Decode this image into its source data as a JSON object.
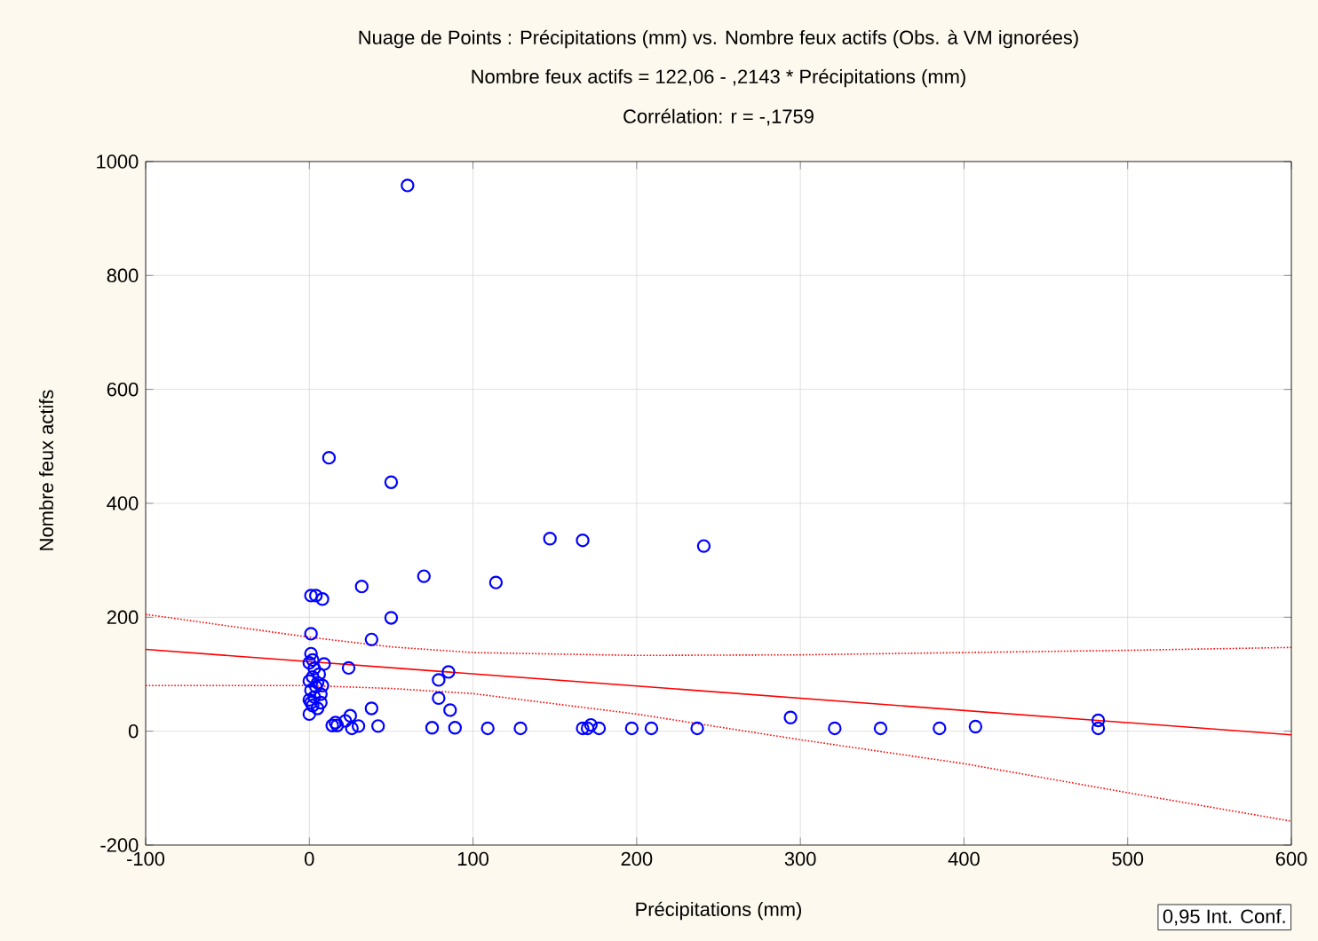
{
  "chart_data": {
    "type": "scatter",
    "title": "Nuage de Points : Précipitations  (mm) vs. Nombre feux actifs (Obs. à VM ignorées)",
    "subtitle": "Nombre feux actifs = 122,06 - ,2143  * Précipitations  (mm)",
    "annotations": [
      "Corrélation: r = -,1759",
      "0,95 Int. Conf."
    ],
    "xlabel": "Précipitations  (mm)",
    "ylabel": "Nombre feux actifs",
    "xlim": [
      -100,
      600
    ],
    "ylim": [
      -200,
      1000
    ],
    "xticks": [
      -100,
      0,
      100,
      200,
      300,
      400,
      500,
      600
    ],
    "yticks": [
      -200,
      0,
      200,
      400,
      600,
      800,
      1000
    ],
    "grid": true,
    "series": [
      {
        "marker": "circle",
        "color": "#0000ff",
        "x": [
          60,
          12,
          50,
          1,
          4,
          8,
          32,
          70,
          50,
          38,
          1,
          1,
          2,
          24,
          85,
          79,
          79,
          86,
          38,
          16,
          25,
          30,
          42,
          75,
          89,
          0,
          2,
          5,
          0,
          3,
          7,
          1,
          4,
          8,
          0,
          2,
          6,
          3,
          9,
          1,
          5,
          0,
          7,
          14,
          17,
          22,
          26,
          114,
          147,
          167,
          241,
          109,
          129,
          167,
          170,
          172,
          177,
          197,
          209,
          237,
          294,
          321,
          349,
          385,
          407,
          482,
          482
        ],
        "values": [
          958,
          480,
          437,
          238,
          238,
          232,
          254,
          272,
          199,
          161,
          171,
          136,
          125,
          111,
          104,
          90,
          58,
          37,
          40,
          15,
          27,
          9,
          9,
          6,
          6,
          30,
          45,
          40,
          55,
          60,
          65,
          72,
          78,
          80,
          88,
          95,
          100,
          110,
          118,
          50,
          85,
          120,
          50,
          10,
          10,
          18,
          5,
          261,
          338,
          335,
          325,
          5,
          5,
          5,
          5,
          11,
          5,
          5,
          5,
          5,
          24,
          5,
          5,
          5,
          8,
          19,
          5
        ]
      },
      {
        "type": "line",
        "marker": "none",
        "color": "#ff0000",
        "line_style": "solid",
        "x": [
          -100,
          600
        ],
        "values": [
          143.5,
          -6.5
        ]
      },
      {
        "type": "line",
        "marker": "none",
        "color": "#ff0000",
        "line_style": "dotted",
        "x": [
          -100,
          0,
          50,
          100,
          200,
          300,
          400,
          500,
          600
        ],
        "values": [
          205,
          165,
          148,
          138,
          133,
          134,
          138,
          142,
          147
        ]
      },
      {
        "type": "line",
        "marker": "none",
        "color": "#ff0000",
        "line_style": "dotted",
        "x": [
          -100,
          0,
          50,
          100,
          200,
          300,
          400,
          500,
          600
        ],
        "values": [
          80,
          80,
          75,
          66,
          30,
          -15,
          -57,
          -108,
          -158
        ]
      }
    ]
  }
}
